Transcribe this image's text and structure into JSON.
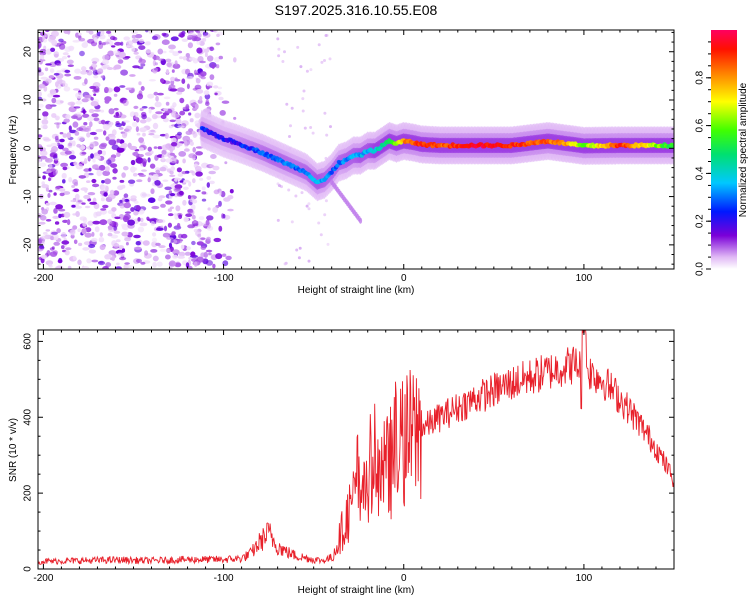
{
  "title": "S197.2025.316.10.55.E08",
  "chart_data": [
    {
      "type": "heatmap",
      "title": "S197.2025.316.10.55.E08",
      "xlabel": "Height of straight line (km)",
      "ylabel": "Frequency (Hz)",
      "xlim": [
        -203,
        150
      ],
      "ylim": [
        -25,
        24.5
      ],
      "xticks": [
        -200,
        -100,
        0,
        100
      ],
      "yticks": [
        -20,
        -10,
        0,
        10,
        20
      ],
      "colorbar": {
        "label": "Normalized spectral amplitude",
        "range": [
          0,
          1
        ],
        "ticks": [
          "0.0",
          "0.2",
          "0.4",
          "0.6",
          "0.8"
        ],
        "tick_values": [
          0,
          0.2,
          0.4,
          0.6,
          0.8
        ]
      },
      "ridge": {
        "x": [
          -112,
          -100,
          -92,
          -85,
          -78,
          -72,
          -66,
          -60,
          -54,
          -48,
          -44,
          -40,
          -36,
          -32,
          -28,
          -24,
          -20,
          -16,
          -12,
          -8,
          -4,
          0,
          5,
          10,
          20,
          40,
          60,
          80,
          90,
          100,
          120,
          150
        ],
        "frequency_hz": [
          4,
          2,
          1,
          0,
          -1,
          -2,
          -3,
          -4,
          -5,
          -7,
          -6.5,
          -5,
          -3,
          -2.5,
          -1.5,
          -1.5,
          -0.5,
          -0.5,
          0.5,
          1.5,
          1,
          1.5,
          1.2,
          0.8,
          0.6,
          0.6,
          0.6,
          1.5,
          1,
          0.5,
          0.6,
          0.6
        ],
        "amplitude": [
          0.25,
          0.2,
          0.22,
          0.25,
          0.28,
          0.3,
          0.3,
          0.28,
          0.3,
          0.35,
          0.32,
          0.3,
          0.3,
          0.32,
          0.32,
          0.35,
          0.35,
          0.4,
          0.45,
          0.5,
          0.6,
          0.8,
          0.85,
          0.9,
          0.85,
          0.95,
          0.9,
          0.85,
          0.8,
          0.6,
          0.9,
          0.5
        ]
      },
      "noise_region_x": [
        -203,
        -92
      ]
    },
    {
      "type": "line",
      "xlabel": "Height of straight line (km)",
      "ylabel": "SNR (10 * v/v)",
      "xlim": [
        -203,
        150
      ],
      "ylim": [
        0,
        630
      ],
      "xticks": [
        -200,
        -100,
        0,
        100
      ],
      "yticks": [
        0,
        200,
        400,
        600
      ],
      "color": "#e8202a",
      "series": [
        {
          "name": "SNR",
          "x": [
            -203,
            -180,
            -160,
            -140,
            -120,
            -100,
            -90,
            -85,
            -80,
            -75,
            -70,
            -65,
            -60,
            -55,
            -50,
            -45,
            -40,
            -35,
            -30,
            -25,
            -20,
            -15,
            -10,
            -5,
            0,
            10,
            20,
            30,
            40,
            50,
            60,
            70,
            80,
            90,
            95,
            100,
            110,
            120,
            130,
            140,
            150
          ],
          "y": [
            20,
            22,
            24,
            22,
            25,
            25,
            28,
            40,
            70,
            95,
            60,
            45,
            35,
            30,
            25,
            22,
            30,
            90,
            160,
            200,
            230,
            240,
            260,
            300,
            330,
            370,
            400,
            425,
            450,
            470,
            490,
            505,
            520,
            535,
            540,
            530,
            500,
            450,
            390,
            320,
            235
          ]
        }
      ]
    }
  ]
}
